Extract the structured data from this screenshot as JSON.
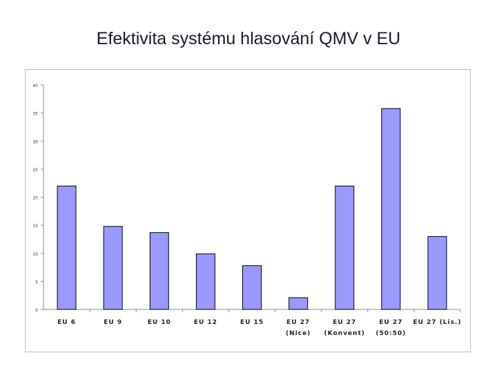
{
  "slide": {
    "title": "Efektivita systému hlasování QMV v EU"
  },
  "chart_data": {
    "type": "bar",
    "categories": [
      [
        "EU 6"
      ],
      [
        "EU 9"
      ],
      [
        "EU 10"
      ],
      [
        "EU 12"
      ],
      [
        "EU 15"
      ],
      [
        "EU 27",
        "(Nice)"
      ],
      [
        "EU 27",
        "(Konvent)"
      ],
      [
        "EU 27",
        "(50:50)"
      ],
      [
        "EU 27 (Lis.)"
      ]
    ],
    "values": [
      22,
      14.8,
      13.7,
      9.9,
      7.8,
      2.1,
      22,
      35.8,
      13
    ],
    "yticks": [
      "0",
      "5",
      "10",
      "15",
      "20",
      "25",
      "30",
      "35",
      "40"
    ],
    "ylim": [
      0,
      40
    ],
    "bar_color": "#9999ff",
    "grid": false,
    "legend": "none"
  }
}
